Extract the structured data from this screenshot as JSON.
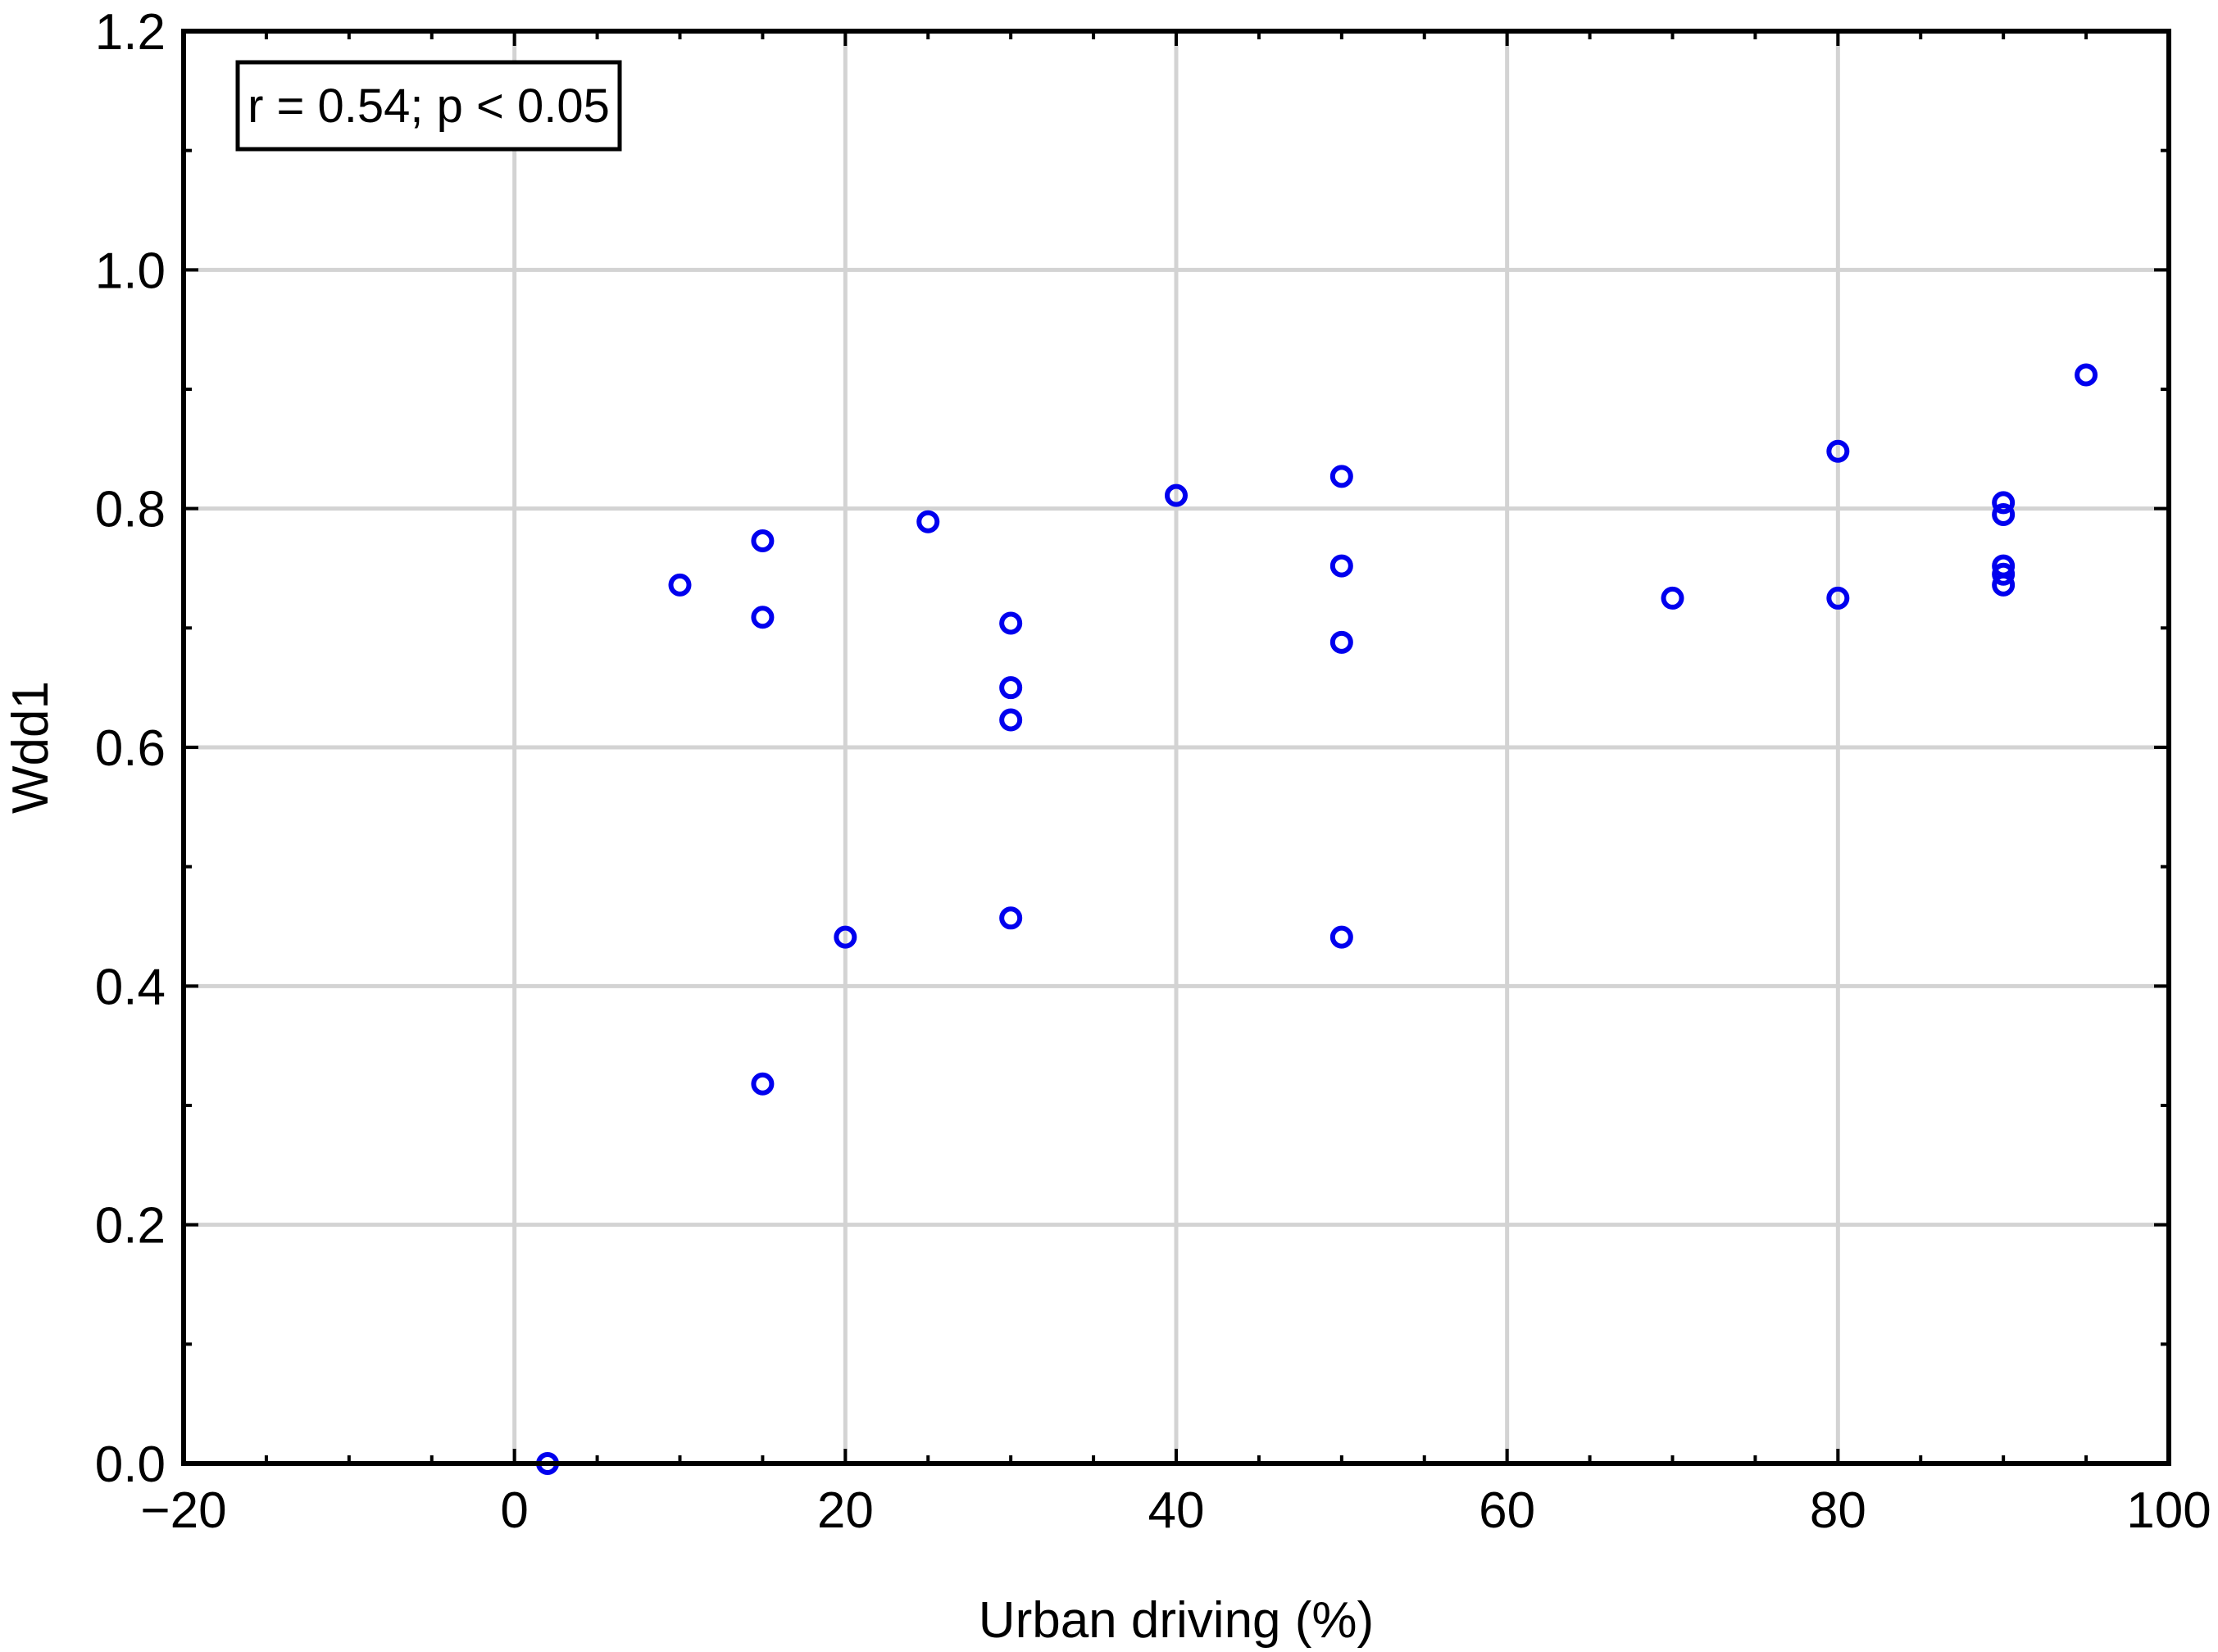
{
  "chart_data": {
    "type": "scatter",
    "xlabel": "Urban driving (%)",
    "ylabel": "Wdd1",
    "xlim": [
      -20,
      100
    ],
    "ylim": [
      0.0,
      1.2
    ],
    "xticks": [
      -20,
      0,
      20,
      40,
      60,
      80,
      100
    ],
    "xtick_labels": [
      "−20",
      "0",
      "20",
      "40",
      "60",
      "80",
      "100"
    ],
    "yticks": [
      0.0,
      0.2,
      0.4,
      0.6,
      0.8,
      1.0,
      1.2
    ],
    "ytick_labels": [
      "0.0",
      "0.2",
      "0.4",
      "0.6",
      "0.8",
      "1.0",
      "1.2"
    ],
    "grid": true,
    "annotation": "r = 0.54; p < 0.05",
    "marker": "open-circle",
    "marker_color": "#0000ee",
    "series": [
      {
        "points": [
          {
            "x": 2,
            "y": 0.0
          },
          {
            "x": 10,
            "y": 0.736
          },
          {
            "x": 15,
            "y": 0.773
          },
          {
            "x": 15,
            "y": 0.709
          },
          {
            "x": 15,
            "y": 0.318
          },
          {
            "x": 20,
            "y": 0.441
          },
          {
            "x": 25,
            "y": 0.789
          },
          {
            "x": 30,
            "y": 0.704
          },
          {
            "x": 30,
            "y": 0.65
          },
          {
            "x": 30,
            "y": 0.623
          },
          {
            "x": 30,
            "y": 0.457
          },
          {
            "x": 40,
            "y": 0.811
          },
          {
            "x": 50,
            "y": 0.827
          },
          {
            "x": 50,
            "y": 0.752
          },
          {
            "x": 50,
            "y": 0.688
          },
          {
            "x": 50,
            "y": 0.441
          },
          {
            "x": 70,
            "y": 0.725
          },
          {
            "x": 80,
            "y": 0.848
          },
          {
            "x": 80,
            "y": 0.725
          },
          {
            "x": 90,
            "y": 0.805
          },
          {
            "x": 90,
            "y": 0.795
          },
          {
            "x": 90,
            "y": 0.752
          },
          {
            "x": 90,
            "y": 0.745
          },
          {
            "x": 90,
            "y": 0.736
          },
          {
            "x": 95,
            "y": 0.912
          }
        ]
      }
    ]
  }
}
